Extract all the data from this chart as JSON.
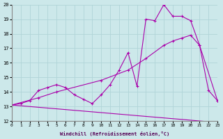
{
  "xlabel": "Windchill (Refroidissement éolien,°C)",
  "ylabel": "",
  "xlim": [
    0,
    23
  ],
  "ylim": [
    12,
    20
  ],
  "xticks": [
    0,
    1,
    2,
    3,
    4,
    5,
    6,
    7,
    8,
    9,
    10,
    11,
    12,
    13,
    14,
    15,
    16,
    17,
    18,
    19,
    20,
    21,
    22,
    23
  ],
  "yticks": [
    12,
    13,
    14,
    15,
    16,
    17,
    18,
    19,
    20
  ],
  "bg_color": "#cce8ea",
  "grid_color": "#b0d4d8",
  "line_color": "#aa00aa",
  "line1": {
    "x": [
      0,
      1,
      2,
      3,
      4,
      5,
      6,
      7,
      8,
      9,
      10,
      11,
      12,
      13,
      14,
      15,
      16,
      17,
      18,
      19,
      20,
      21,
      22,
      23
    ],
    "y": [
      13.1,
      13.2,
      13.4,
      14.1,
      14.3,
      14.5,
      14.3,
      13.8,
      13.5,
      13.2,
      13.8,
      14.5,
      15.5,
      16.7,
      14.4,
      19.0,
      18.9,
      20.0,
      19.2,
      19.2,
      18.9,
      17.2,
      14.1,
      13.4
    ]
  },
  "line2": {
    "x": [
      0,
      3,
      5,
      10,
      13,
      15,
      17,
      18,
      19,
      20,
      21,
      23
    ],
    "y": [
      13.1,
      13.6,
      14.0,
      14.8,
      15.5,
      16.3,
      17.2,
      17.5,
      17.7,
      17.9,
      17.2,
      13.4
    ]
  },
  "line3": {
    "x": [
      0,
      23
    ],
    "y": [
      13.1,
      11.9
    ]
  }
}
